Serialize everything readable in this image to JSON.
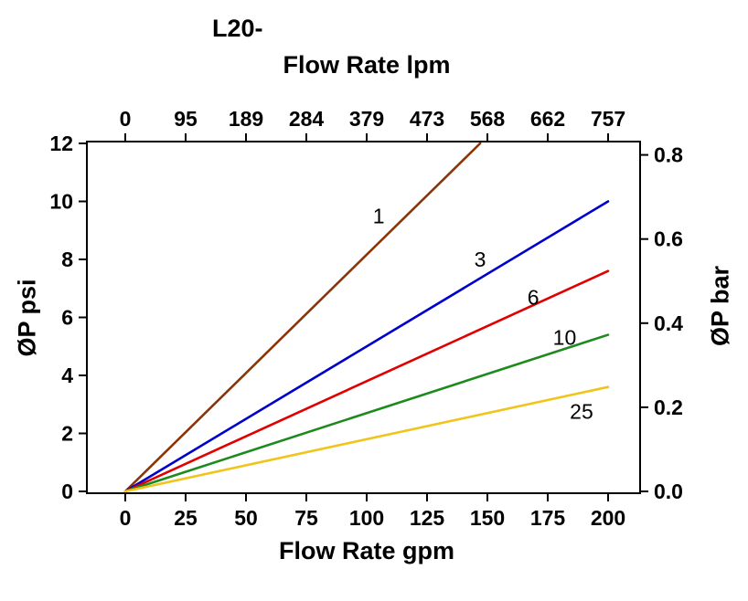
{
  "chart": {
    "title": "L20-",
    "top_axis_label": "Flow Rate lpm",
    "bottom_axis_label": "Flow Rate gpm",
    "left_axis_label": "ØP psi",
    "right_axis_label": "ØP bar"
  },
  "chart_data": {
    "type": "line",
    "title": "L20-",
    "x_bottom": {
      "label": "Flow Rate gpm",
      "ticks": [
        0,
        25,
        50,
        75,
        100,
        125,
        150,
        175,
        200
      ],
      "range": [
        0,
        200
      ]
    },
    "x_top": {
      "label": "Flow Rate lpm",
      "ticks": [
        0,
        95,
        189,
        284,
        379,
        473,
        568,
        662,
        757
      ],
      "range": [
        0,
        757
      ]
    },
    "y_left": {
      "label": "ØP psi",
      "ticks": [
        0,
        2,
        4,
        6,
        8,
        10,
        12
      ],
      "range": [
        0,
        12
      ]
    },
    "y_right": {
      "label": "ØP bar",
      "tick_labels": [
        "0.0",
        "0.2",
        "0.4",
        "0.6",
        "0.8"
      ],
      "tick_values": [
        0.0,
        0.2,
        0.4,
        0.6,
        0.8
      ],
      "psi_per_bar": 14.5038
    },
    "grid": false,
    "legend": "inline-labels",
    "series": [
      {
        "name": "1",
        "color": "#8a3408",
        "points": [
          [
            0,
            0
          ],
          [
            147,
            12
          ]
        ],
        "label_pos": [
          105,
          9.5
        ]
      },
      {
        "name": "3",
        "color": "#0000cc",
        "points": [
          [
            0,
            0
          ],
          [
            200,
            10
          ]
        ],
        "label_pos": [
          147,
          8.0
        ]
      },
      {
        "name": "6",
        "color": "#e10000",
        "points": [
          [
            0,
            0
          ],
          [
            200,
            7.6
          ]
        ],
        "label_pos": [
          169,
          6.7
        ]
      },
      {
        "name": "10",
        "color": "#1e8a1e",
        "points": [
          [
            0,
            0
          ],
          [
            200,
            5.4
          ]
        ],
        "label_pos": [
          182,
          5.3
        ]
      },
      {
        "name": "25",
        "color": "#f0c419",
        "points": [
          [
            0,
            0
          ],
          [
            200,
            3.6
          ]
        ],
        "label_pos": [
          189,
          2.75
        ]
      }
    ]
  }
}
